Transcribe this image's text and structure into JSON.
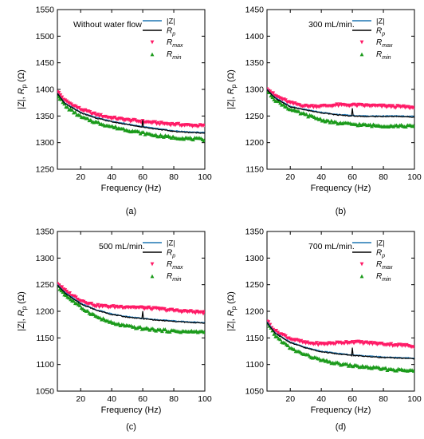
{
  "legend_labels": {
    "z": "|Z|",
    "rp_main": "R",
    "rp_sub": "p",
    "rmax_main": "R",
    "rmax_sub": "max",
    "rmin_main": "R",
    "rmin_sub": "min"
  },
  "ylabel_parts": {
    "z": "|Z|,  ",
    "r": "R",
    "sub": "p",
    "unit": "  (Ω)"
  },
  "colors": {
    "z": "#1f77b4",
    "rp": "#000000",
    "rmax": "#ff1a66",
    "rmin": "#1a9a1a"
  },
  "chart_data": [
    {
      "type": "line",
      "panel_label": "(a)",
      "title": "Without water flow",
      "xlabel": "Frequency (Hz)",
      "xlim": [
        5,
        100
      ],
      "ylim": [
        1250,
        1550
      ],
      "xticks": [
        20,
        40,
        60,
        80,
        100
      ],
      "yticks": [
        1250,
        1300,
        1350,
        1400,
        1450,
        1500,
        1550
      ],
      "x": [
        5,
        10,
        20,
        30,
        40,
        50,
        60,
        70,
        80,
        90,
        100
      ],
      "series": [
        {
          "name": "|Z|",
          "values": [
            1393,
            1374,
            1357,
            1347,
            1340,
            1335,
            1330,
            1326,
            1322,
            1320,
            1319
          ]
        },
        {
          "name": "Rp",
          "values": [
            1392,
            1373,
            1356,
            1346,
            1339,
            1334,
            1329,
            1325,
            1321,
            1319,
            1318
          ]
        },
        {
          "name": "Rmax",
          "values": [
            1396,
            1378,
            1362,
            1352,
            1346,
            1342,
            1339,
            1336,
            1334,
            1332,
            1331
          ]
        },
        {
          "name": "Rmin",
          "values": [
            1388,
            1368,
            1348,
            1338,
            1330,
            1324,
            1318,
            1313,
            1310,
            1308,
            1306
          ]
        }
      ]
    },
    {
      "type": "line",
      "panel_label": "(b)",
      "title": "300 mL/min.",
      "xlabel": "Frequency (Hz)",
      "xlim": [
        5,
        100
      ],
      "ylim": [
        1150,
        1450
      ],
      "xticks": [
        20,
        40,
        60,
        80,
        100
      ],
      "yticks": [
        1150,
        1200,
        1250,
        1300,
        1350,
        1400,
        1450
      ],
      "x": [
        5,
        10,
        20,
        30,
        40,
        50,
        60,
        70,
        80,
        90,
        100
      ],
      "series": [
        {
          "name": "|Z|",
          "values": [
            1300,
            1285,
            1268,
            1262,
            1257,
            1253,
            1251,
            1250,
            1250,
            1250,
            1249
          ]
        },
        {
          "name": "Rp",
          "values": [
            1299,
            1284,
            1267,
            1261,
            1256,
            1252,
            1250,
            1249,
            1249,
            1249,
            1248
          ]
        },
        {
          "name": "Rmax",
          "values": [
            1302,
            1288,
            1274,
            1268,
            1268,
            1270,
            1270,
            1269,
            1268,
            1267,
            1265
          ]
        },
        {
          "name": "Rmin",
          "values": [
            1296,
            1280,
            1262,
            1252,
            1243,
            1237,
            1235,
            1233,
            1232,
            1232,
            1231
          ]
        }
      ]
    },
    {
      "type": "line",
      "panel_label": "(c)",
      "title": "500 mL/min.",
      "xlabel": "Frequency (Hz)",
      "xlim": [
        5,
        100
      ],
      "ylim": [
        1050,
        1350
      ],
      "xticks": [
        20,
        40,
        60,
        80,
        100
      ],
      "yticks": [
        1050,
        1100,
        1150,
        1200,
        1250,
        1300,
        1350
      ],
      "x": [
        5,
        10,
        20,
        30,
        40,
        50,
        60,
        70,
        80,
        90,
        100
      ],
      "series": [
        {
          "name": "|Z|",
          "values": [
            1250,
            1235,
            1215,
            1203,
            1195,
            1190,
            1187,
            1184,
            1182,
            1180,
            1179
          ]
        },
        {
          "name": "Rp",
          "values": [
            1249,
            1234,
            1214,
            1202,
            1194,
            1189,
            1186,
            1183,
            1181,
            1179,
            1178
          ]
        },
        {
          "name": "Rmax",
          "values": [
            1252,
            1238,
            1220,
            1210,
            1208,
            1208,
            1206,
            1204,
            1201,
            1199,
            1197
          ]
        },
        {
          "name": "Rmin",
          "values": [
            1246,
            1230,
            1207,
            1190,
            1178,
            1172,
            1168,
            1165,
            1163,
            1162,
            1162
          ]
        }
      ]
    },
    {
      "type": "line",
      "panel_label": "(d)",
      "title": "700 mL/min.",
      "xlabel": "Frequency (Hz)",
      "xlim": [
        5,
        100
      ],
      "ylim": [
        1050,
        1350
      ],
      "xticks": [
        20,
        40,
        60,
        80,
        100
      ],
      "yticks": [
        1050,
        1100,
        1150,
        1200,
        1250,
        1300,
        1350
      ],
      "x": [
        5,
        10,
        20,
        30,
        40,
        50,
        60,
        70,
        80,
        90,
        100
      ],
      "series": [
        {
          "name": "|Z|",
          "values": [
            1180,
            1160,
            1142,
            1132,
            1125,
            1121,
            1118,
            1116,
            1114,
            1113,
            1112
          ]
        },
        {
          "name": "Rp",
          "values": [
            1179,
            1159,
            1141,
            1131,
            1124,
            1120,
            1117,
            1115,
            1113,
            1112,
            1111
          ]
        },
        {
          "name": "Rmax",
          "values": [
            1182,
            1163,
            1148,
            1140,
            1138,
            1140,
            1142,
            1140,
            1138,
            1136,
            1134
          ]
        },
        {
          "name": "Rmin",
          "values": [
            1176,
            1154,
            1130,
            1118,
            1108,
            1102,
            1098,
            1095,
            1092,
            1090,
            1088
          ]
        }
      ]
    }
  ]
}
